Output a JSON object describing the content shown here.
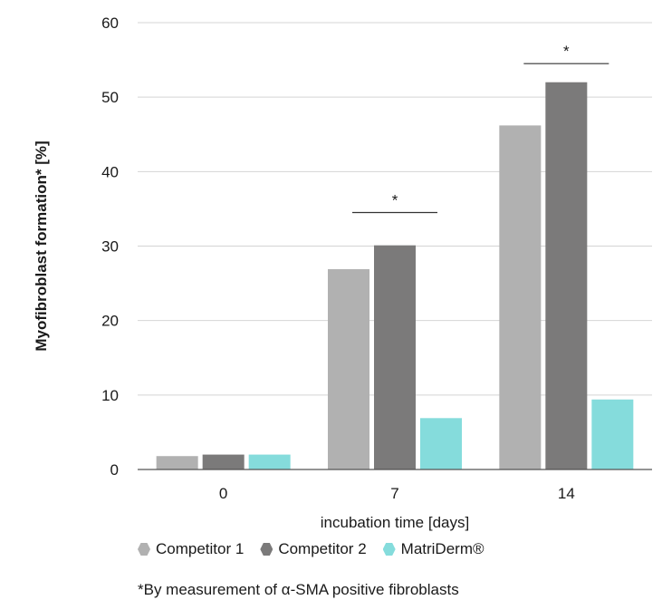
{
  "chart_data": {
    "type": "bar",
    "categories": [
      "0",
      "7",
      "14"
    ],
    "series": [
      {
        "name": "Competitor 1",
        "color": "#b1b1b1",
        "values": [
          1.8,
          26.9,
          46.2
        ]
      },
      {
        "name": "Competitor 2",
        "color": "#7b7a7a",
        "values": [
          2.0,
          30.1,
          52.0
        ]
      },
      {
        "name": "MatriDerm®",
        "color": "#85dcdc",
        "values": [
          2.0,
          6.9,
          9.4
        ]
      }
    ],
    "xlabel": "incubation time [days]",
    "ylabel": "Myofibroblast formation* [%]",
    "ylim": [
      0,
      60
    ],
    "yticks": [
      "0",
      "10",
      "20",
      "30",
      "40",
      "50",
      "60"
    ],
    "grid": true,
    "legend_position": "bottom",
    "significance": [
      {
        "category": "7",
        "label": "*",
        "level": 34.5
      },
      {
        "category": "14",
        "label": "*",
        "level": 54.5
      }
    ],
    "footnote": "*By measurement of α-SMA positive fibroblasts"
  }
}
